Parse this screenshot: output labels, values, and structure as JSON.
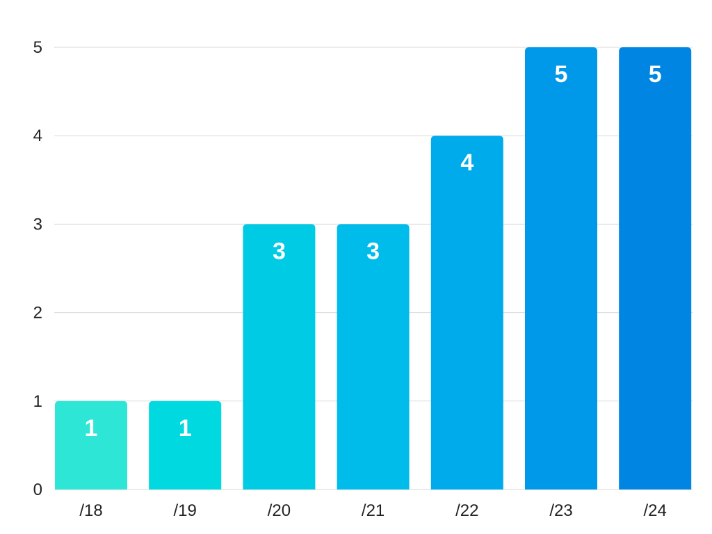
{
  "chart_data": {
    "type": "bar",
    "title": "",
    "xlabel": "",
    "ylabel": "",
    "categories": [
      "/18",
      "/19",
      "/20",
      "/21",
      "/22",
      "/23",
      "/24"
    ],
    "values": [
      1,
      1,
      3,
      3,
      4,
      5,
      5
    ],
    "data_labels": [
      "1",
      "1",
      "3",
      "3",
      "4",
      "5",
      "5"
    ],
    "ylim": [
      0,
      5
    ],
    "yticks": [
      0,
      1,
      2,
      3,
      4,
      5
    ],
    "ytick_labels": [
      "0",
      "1",
      "2",
      "3",
      "4",
      "5"
    ],
    "grid": true,
    "legend": "none",
    "bar_colors": [
      "#2EE6D6",
      "#00D9E0",
      "#00CBE4",
      "#00BCEB",
      "#00ABEC",
      "#0098E8",
      "#0086E2"
    ],
    "gridline_color": "#D9D9D9",
    "label_color": "#FFFFFF",
    "tick_color": "#222222"
  }
}
